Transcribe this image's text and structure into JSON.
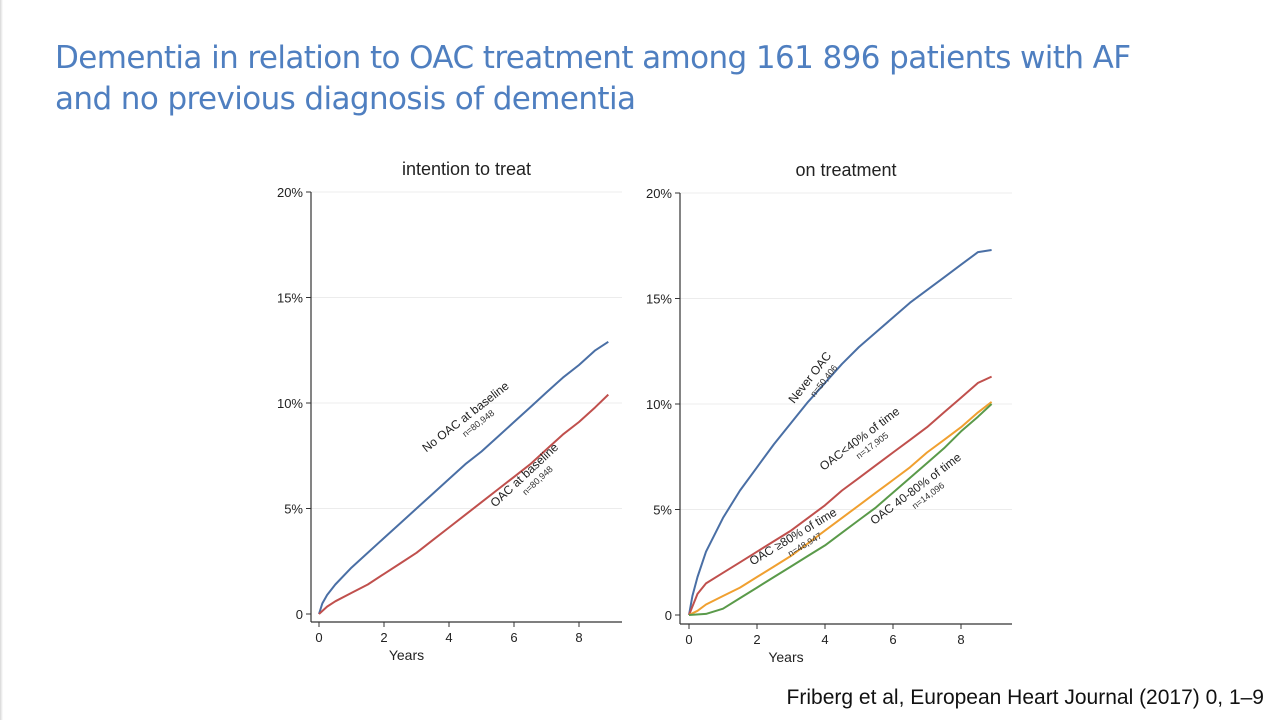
{
  "slide": {
    "title_line1": "Dementia in relation to OAC treatment among 161 896 patients with AF",
    "title_line2": "and no previous diagnosis of dementia",
    "citation": "Friberg et al, European Heart Journal (2017) 0, 1–9"
  },
  "chart_data": [
    {
      "type": "line",
      "title": "intention to treat",
      "xlabel": "Years",
      "ylabel": "",
      "xlim": [
        0,
        9
      ],
      "ylim": [
        0,
        20
      ],
      "xticks": [
        0,
        2,
        4,
        6,
        8
      ],
      "xtick_labels": [
        "0",
        "2",
        "4",
        "6",
        "8"
      ],
      "yticks": [
        0,
        5,
        10,
        15,
        20
      ],
      "ytick_labels": [
        "0",
        "5%",
        "10%",
        "15%",
        "20%"
      ],
      "grid": true,
      "legend": "none",
      "series": [
        {
          "name": "No OAC at baseline",
          "n_label": "n=80,948",
          "color": "#4a6fa5",
          "x": [
            0,
            0.1,
            0.25,
            0.5,
            1,
            1.5,
            2,
            2.5,
            3,
            3.5,
            4,
            4.5,
            5,
            5.5,
            6,
            6.5,
            7,
            7.5,
            8,
            8.5,
            8.9
          ],
          "y": [
            0,
            0.5,
            0.9,
            1.4,
            2.2,
            2.9,
            3.6,
            4.3,
            5.0,
            5.7,
            6.4,
            7.1,
            7.7,
            8.4,
            9.1,
            9.8,
            10.5,
            11.2,
            11.8,
            12.5,
            12.9
          ]
        },
        {
          "name": "OAC at baseline",
          "n_label": "n=80,948",
          "color": "#c0504d",
          "x": [
            0,
            0.25,
            0.5,
            1,
            1.5,
            2,
            2.5,
            3,
            3.5,
            4,
            4.5,
            5,
            5.5,
            6,
            6.5,
            7,
            7.5,
            8,
            8.5,
            8.9
          ],
          "y": [
            0,
            0.35,
            0.6,
            1.0,
            1.4,
            1.9,
            2.4,
            2.9,
            3.5,
            4.1,
            4.7,
            5.3,
            5.9,
            6.5,
            7.1,
            7.8,
            8.5,
            9.1,
            9.8,
            10.4
          ]
        }
      ]
    },
    {
      "type": "line",
      "title": "on treatment",
      "xlabel": "Years",
      "ylabel": "",
      "xlim": [
        0,
        9
      ],
      "ylim": [
        0,
        20
      ],
      "xticks": [
        0,
        2,
        4,
        6,
        8
      ],
      "xtick_labels": [
        "0",
        "2",
        "4",
        "6",
        "8"
      ],
      "yticks": [
        0,
        5,
        10,
        15,
        20
      ],
      "ytick_labels": [
        "0",
        "5%",
        "10%",
        "15%",
        "20%"
      ],
      "grid": true,
      "legend": "none",
      "series": [
        {
          "name": "Never OAC",
          "n_label": "n=50,406",
          "color": "#4a6fa5",
          "x": [
            0,
            0.1,
            0.25,
            0.5,
            1,
            1.5,
            2,
            2.5,
            3,
            3.5,
            4,
            4.5,
            5,
            5.5,
            6,
            6.5,
            7,
            7.5,
            8,
            8.5,
            8.9
          ],
          "y": [
            0,
            0.9,
            1.8,
            3.0,
            4.6,
            5.9,
            7.0,
            8.1,
            9.1,
            10.1,
            11.0,
            11.9,
            12.7,
            13.4,
            14.1,
            14.8,
            15.4,
            16.0,
            16.6,
            17.2,
            17.3
          ]
        },
        {
          "name": "OAC<40% of time",
          "n_label": "n=17,905",
          "color": "#c0504d",
          "x": [
            0,
            0.25,
            0.5,
            1,
            1.5,
            2,
            2.5,
            3,
            3.5,
            4,
            4.5,
            5,
            5.5,
            6,
            6.5,
            7,
            7.5,
            8,
            8.5,
            8.9
          ],
          "y": [
            0,
            1.0,
            1.5,
            2.0,
            2.5,
            3.0,
            3.5,
            4.0,
            4.6,
            5.2,
            5.9,
            6.5,
            7.1,
            7.7,
            8.3,
            8.9,
            9.6,
            10.3,
            11.0,
            11.3
          ]
        },
        {
          "name": "OAC ≥80% of time",
          "n_label": "n=48,947",
          "color": "#f0a030",
          "x": [
            0,
            0.25,
            0.5,
            1,
            1.5,
            2,
            2.5,
            3,
            3.5,
            4,
            4.5,
            5,
            5.5,
            6,
            6.5,
            7,
            7.5,
            8,
            8.5,
            8.9
          ],
          "y": [
            0,
            0.2,
            0.5,
            0.9,
            1.3,
            1.8,
            2.3,
            2.8,
            3.4,
            4.0,
            4.6,
            5.2,
            5.8,
            6.4,
            7.0,
            7.7,
            8.3,
            8.9,
            9.6,
            10.1
          ]
        },
        {
          "name": "OAC 40-80% of time",
          "n_label": "n=14,096",
          "color": "#5a9a4a",
          "x": [
            0,
            0.5,
            1,
            1.5,
            2,
            2.5,
            3,
            3.5,
            4,
            4.5,
            5,
            5.5,
            6,
            6.5,
            7,
            7.5,
            8,
            8.5,
            8.9
          ],
          "y": [
            0,
            0.05,
            0.3,
            0.8,
            1.3,
            1.8,
            2.3,
            2.8,
            3.3,
            3.9,
            4.5,
            5.1,
            5.8,
            6.5,
            7.2,
            7.9,
            8.7,
            9.4,
            10.0
          ]
        }
      ]
    }
  ]
}
